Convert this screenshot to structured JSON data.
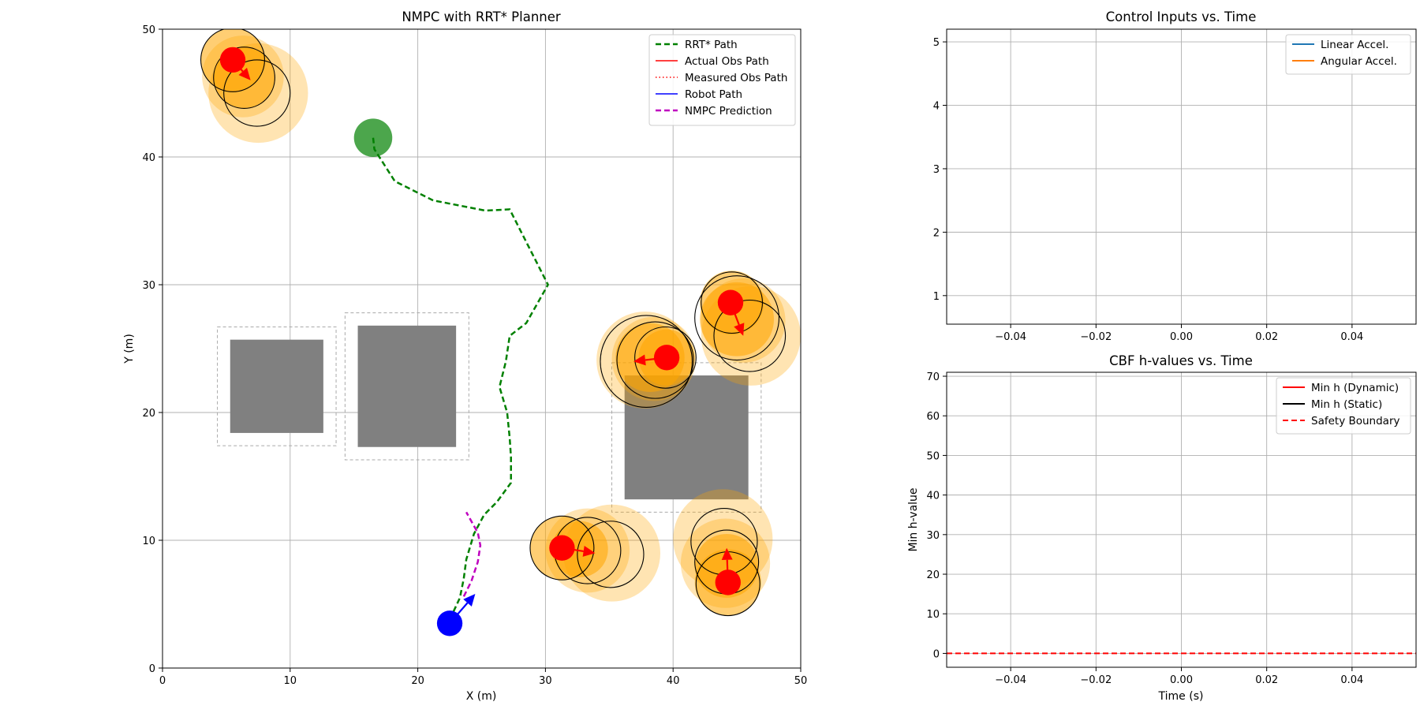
{
  "figure": {
    "background": "#ffffff"
  },
  "chart_data": [
    {
      "id": "map",
      "type": "scatter",
      "title": "NMPC with RRT* Planner",
      "xlabel": "X (m)",
      "ylabel": "Y (m)",
      "xlim": [
        0,
        50
      ],
      "ylim": [
        0,
        50
      ],
      "xticks": [
        0,
        10,
        20,
        30,
        40,
        50
      ],
      "yticks": [
        0,
        10,
        20,
        30,
        40,
        50
      ],
      "grid": true,
      "legend_position": "top-right",
      "legend": [
        {
          "label": "RRT* Path",
          "color": "#008000",
          "style": "dashed",
          "width": 2.5
        },
        {
          "label": "Actual Obs Path",
          "color": "#ff0000",
          "style": "solid",
          "width": 1.5
        },
        {
          "label": "Measured Obs Path",
          "color": "#ff0000",
          "style": "dotted",
          "width": 1.5
        },
        {
          "label": "Robot Path",
          "color": "#0000ff",
          "style": "solid",
          "width": 1.5
        },
        {
          "label": "NMPC Prediction",
          "color": "#bf00bf",
          "style": "dashed",
          "width": 2.5
        }
      ],
      "goal": {
        "x": 16.5,
        "y": 41.5,
        "r": 1.5,
        "color": "#008000"
      },
      "robot": {
        "x": 22.5,
        "y": 3.5,
        "r": 1.0,
        "color": "#0000ff",
        "heading": {
          "dx": 2.0,
          "dy": 2.3
        }
      },
      "static_obstacles": [
        {
          "x0": 5.3,
          "x1": 12.6,
          "y0": 18.4,
          "y1": 25.7,
          "inflate": 1.0
        },
        {
          "x0": 15.3,
          "x1": 23.0,
          "y0": 17.3,
          "y1": 26.8,
          "inflate": 1.0
        },
        {
          "x0": 36.2,
          "x1": 45.9,
          "y0": 13.2,
          "y1": 22.9,
          "inflate": 1.0
        }
      ],
      "rrt_path": [
        [
          16.5,
          41.5
        ],
        [
          16.6,
          40.6
        ],
        [
          18.2,
          38.1
        ],
        [
          21.2,
          36.6
        ],
        [
          25.3,
          35.8
        ],
        [
          27.2,
          35.9
        ],
        [
          30.2,
          30.0
        ],
        [
          28.5,
          27.0
        ],
        [
          27.2,
          26.0
        ],
        [
          26.9,
          24.0
        ],
        [
          26.4,
          22.0
        ],
        [
          27.0,
          20.0
        ],
        [
          27.2,
          18.0
        ],
        [
          27.3,
          16.5
        ],
        [
          27.3,
          14.5
        ],
        [
          26.2,
          13.0
        ],
        [
          25.2,
          12.0
        ],
        [
          24.4,
          10.5
        ],
        [
          23.8,
          8.5
        ],
        [
          23.6,
          7.0
        ],
        [
          23.3,
          5.5
        ],
        [
          22.6,
          4.0
        ]
      ],
      "nmpc_prediction": [
        [
          23.6,
          5.6
        ],
        [
          24.2,
          6.8
        ],
        [
          24.7,
          8.3
        ],
        [
          24.9,
          9.6
        ],
        [
          24.7,
          10.6
        ],
        [
          24.3,
          11.3
        ],
        [
          23.8,
          12.2
        ]
      ],
      "dynamic_obstacles": [
        {
          "pos": {
            "x": 5.5,
            "y": 47.6
          },
          "dir": {
            "dx": 1.4,
            "dy": -1.6
          },
          "r": 1.0,
          "halo_big": [
            {
              "x": 7.5,
              "y": 45.0,
              "r": 3.9
            },
            {
              "x": 6.3,
              "y": 46.3,
              "r": 3.2
            }
          ],
          "halo_mid": [
            {
              "x": 5.5,
              "y": 47.6,
              "r": 2.5
            },
            {
              "x": 6.4,
              "y": 46.2,
              "r": 2.4
            }
          ],
          "rings": [
            {
              "x": 5.5,
              "y": 47.6,
              "r": 2.5
            },
            {
              "x": 6.4,
              "y": 46.2,
              "r": 2.4
            },
            {
              "x": 7.4,
              "y": 45.0,
              "r": 2.6
            }
          ]
        },
        {
          "pos": {
            "x": 39.5,
            "y": 24.3
          },
          "dir": {
            "dx": -2.6,
            "dy": -0.3
          },
          "r": 1.0,
          "halo_big": [
            {
              "x": 37.8,
              "y": 24.1,
              "r": 3.8
            },
            {
              "x": 38.5,
              "y": 24.2,
              "r": 3.3
            }
          ],
          "halo_mid": [
            {
              "x": 38.2,
              "y": 24.3,
              "r": 2.7
            },
            {
              "x": 39.5,
              "y": 24.3,
              "r": 2.2
            }
          ],
          "rings": [
            {
              "x": 37.9,
              "y": 24.0,
              "r": 3.6
            },
            {
              "x": 38.6,
              "y": 24.1,
              "r": 3.0
            },
            {
              "x": 39.4,
              "y": 24.3,
              "r": 2.4
            }
          ]
        },
        {
          "pos": {
            "x": 44.5,
            "y": 28.6
          },
          "dir": {
            "dx": 1.0,
            "dy": -2.6
          },
          "r": 1.0,
          "halo_big": [
            {
              "x": 46.1,
              "y": 26.0,
              "r": 3.9
            },
            {
              "x": 45.5,
              "y": 27.2,
              "r": 3.3
            }
          ],
          "halo_mid": [
            {
              "x": 44.6,
              "y": 28.6,
              "r": 2.5
            },
            {
              "x": 45.0,
              "y": 27.3,
              "r": 2.9
            }
          ],
          "rings": [
            {
              "x": 44.6,
              "y": 28.6,
              "r": 2.4
            },
            {
              "x": 45.0,
              "y": 27.4,
              "r": 3.3
            },
            {
              "x": 46.0,
              "y": 26.0,
              "r": 2.8
            }
          ]
        },
        {
          "pos": {
            "x": 31.3,
            "y": 9.4
          },
          "dir": {
            "dx": 2.6,
            "dy": -0.4
          },
          "r": 1.0,
          "halo_big": [
            {
              "x": 35.2,
              "y": 9.0,
              "r": 3.8
            },
            {
              "x": 33.3,
              "y": 9.2,
              "r": 3.3
            }
          ],
          "halo_mid": [
            {
              "x": 31.3,
              "y": 9.4,
              "r": 2.5
            },
            {
              "x": 32.7,
              "y": 9.3,
              "r": 2.2
            }
          ],
          "rings": [
            {
              "x": 31.3,
              "y": 9.4,
              "r": 2.5
            },
            {
              "x": 33.3,
              "y": 9.2,
              "r": 2.6
            },
            {
              "x": 35.1,
              "y": 8.9,
              "r": 2.6
            }
          ]
        },
        {
          "pos": {
            "x": 44.3,
            "y": 6.7
          },
          "dir": {
            "dx": -0.1,
            "dy": 2.7
          },
          "r": 1.0,
          "halo_big": [
            {
              "x": 43.9,
              "y": 10.1,
              "r": 3.9
            },
            {
              "x": 44.1,
              "y": 8.2,
              "r": 3.5
            }
          ],
          "halo_mid": [
            {
              "x": 44.3,
              "y": 6.7,
              "r": 2.6
            },
            {
              "x": 44.2,
              "y": 8.0,
              "r": 2.5
            }
          ],
          "rings": [
            {
              "x": 44.3,
              "y": 6.6,
              "r": 2.5
            },
            {
              "x": 44.2,
              "y": 8.3,
              "r": 2.5
            },
            {
              "x": 44.0,
              "y": 9.9,
              "r": 2.6
            }
          ]
        }
      ],
      "colors": {
        "obstacle_fill": "#808080",
        "inflate_outline": "#aaaaaa",
        "halo_big": "#ffa500",
        "halo_mid": "#ffa500",
        "obs_center": "#ff0000",
        "ring": "#000000"
      }
    },
    {
      "id": "controls",
      "type": "line",
      "title": "Control Inputs vs. Time",
      "xlabel": "",
      "ylabel": "",
      "xlim": [
        -0.055,
        0.055
      ],
      "ylim": [
        0.55,
        5.2
      ],
      "xticks": [
        -0.04,
        -0.02,
        0.0,
        0.02,
        0.04
      ],
      "xtick_labels": [
        "−0.04",
        "−0.02",
        "0.00",
        "0.02",
        "0.04"
      ],
      "yticks": [
        1,
        2,
        3,
        4,
        5
      ],
      "grid": true,
      "legend_position": "top-right",
      "series": [
        {
          "name": "Linear Accel.",
          "color": "#1f77b4",
          "values": []
        },
        {
          "name": "Angular Accel.",
          "color": "#ff7f0e",
          "values": []
        }
      ]
    },
    {
      "id": "cbf",
      "type": "line",
      "title": "CBF h-values vs. Time",
      "xlabel": "Time (s)",
      "ylabel": "Min h-value",
      "xlim": [
        -0.055,
        0.055
      ],
      "ylim": [
        -3.5,
        71
      ],
      "xticks": [
        -0.04,
        -0.02,
        0.0,
        0.02,
        0.04
      ],
      "xtick_labels": [
        "−0.04",
        "−0.02",
        "0.00",
        "0.02",
        "0.04"
      ],
      "yticks": [
        0,
        10,
        20,
        30,
        40,
        50,
        60,
        70
      ],
      "grid": true,
      "legend_position": "top-right",
      "series": [
        {
          "name": "Min h (Dynamic)",
          "color": "#ff0000",
          "style": "solid",
          "values": []
        },
        {
          "name": "Min h (Static)",
          "color": "#000000",
          "style": "solid",
          "values": []
        },
        {
          "name": "Safety Boundary",
          "color": "#ff0000",
          "style": "dashed",
          "y": 0
        }
      ]
    }
  ]
}
